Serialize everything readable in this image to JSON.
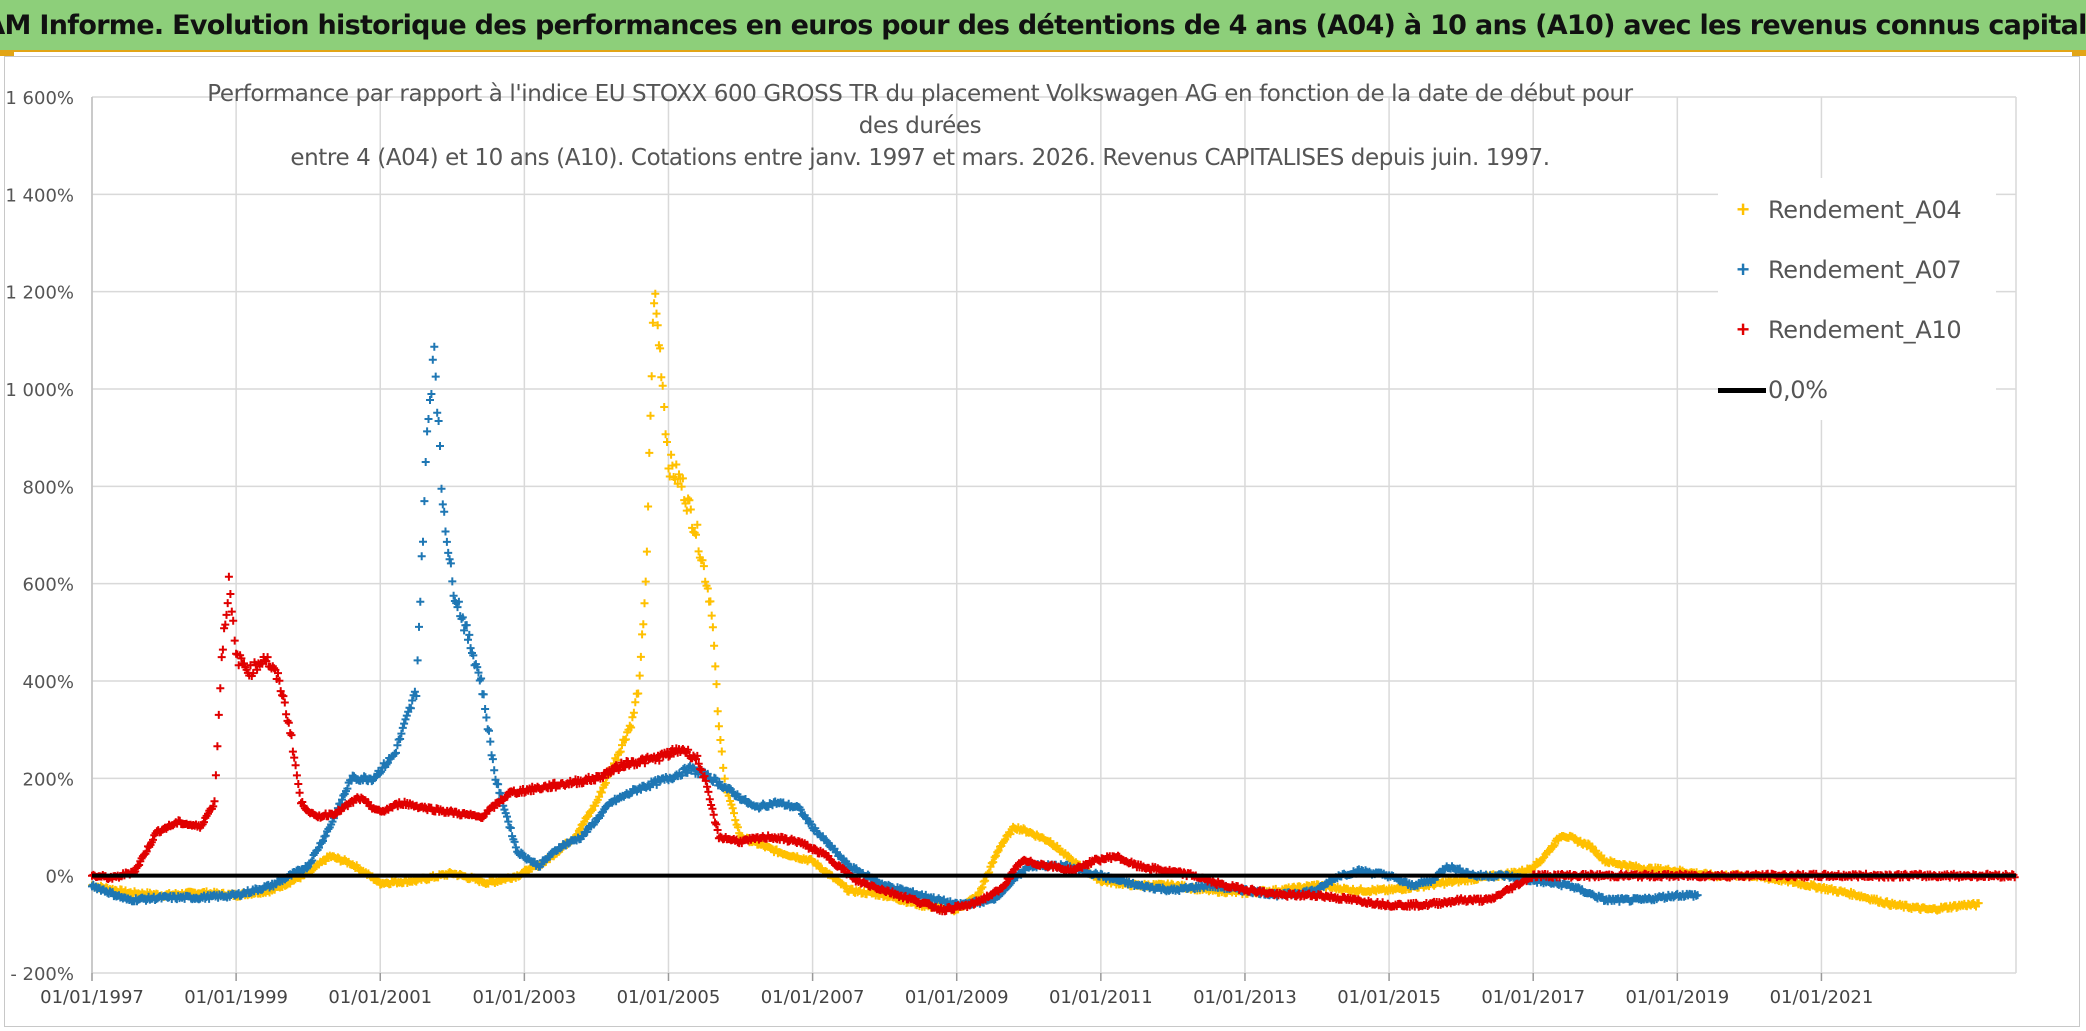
{
  "header": {
    "title": "ADAM Informe. Evolution historique des performances en euros pour des détentions de 4 ans (A04) à 10 ans (A10) avec les revenus connus capitalisés"
  },
  "chart_data": {
    "type": "scatter",
    "title_line1": "Performance par rapport à l'indice EU STOXX 600 GROSS TR  du placement Volkswagen AG en fonction de la date de début pour des durées",
    "title_line2": "entre 4 (A04) et 10 ans (A10). Cotations entre janv. 1997 et mars. 2026. Revenus CAPITALISES depuis juin. 1997.",
    "xlabel": "",
    "ylabel": "",
    "x_start_year": 1997,
    "x_end_year": 2023.7,
    "ylim": [
      -200,
      1600
    ],
    "y_ticks": [
      -200,
      0,
      200,
      400,
      600,
      800,
      1000,
      1200,
      1400,
      1600
    ],
    "y_tick_labels": [
      "- 200%",
      "0%",
      "200%",
      "400%",
      "600%",
      "800%",
      "1 000%",
      "1 200%",
      "1 400%",
      "1 600%"
    ],
    "x_tick_labels": [
      "01/01/1997",
      "01/01/1999",
      "01/01/2001",
      "01/01/2003",
      "01/01/2005",
      "01/01/2007",
      "01/01/2009",
      "01/01/2011",
      "01/01/2013",
      "01/01/2015",
      "01/01/2017",
      "01/01/2019",
      "01/01/2021"
    ],
    "legend_position": "top-right",
    "grid": true,
    "series": [
      {
        "name": "Rendement_A04",
        "color": "#ffc000",
        "marker": "+",
        "x": [
          1997.0,
          1997.5,
          1998.0,
          1998.5,
          1999.0,
          1999.5,
          2000.0,
          2000.3,
          2000.6,
          2001.0,
          2001.5,
          2002.0,
          2002.5,
          2002.9,
          2003.3,
          2003.7,
          2004.0,
          2004.3,
          2004.5,
          2004.6,
          2004.7,
          2004.75,
          2004.8,
          2004.9,
          2005.0,
          2005.2,
          2005.4,
          2005.6,
          2005.7,
          2005.8,
          2006.0,
          2006.5,
          2007.0,
          2007.5,
          2008.0,
          2008.5,
          2009.0,
          2009.3,
          2009.6,
          2009.8,
          2010.0,
          2010.3,
          2010.6,
          2011.0,
          2011.5,
          2012.0,
          2012.5,
          2013.0,
          2013.5,
          2014.0,
          2014.5,
          2015.0,
          2015.5,
          2016.0,
          2016.5,
          2016.9,
          2017.1,
          2017.4,
          2017.8,
          2018.0,
          2018.5,
          2019.0,
          2019.5,
          2020.0,
          2020.5,
          2021.0,
          2021.5,
          2022.0,
          2022.5,
          2023.0,
          2023.2
        ],
        "values": [
          -20,
          -35,
          -40,
          -35,
          -40,
          -30,
          5,
          40,
          25,
          -15,
          -10,
          5,
          -15,
          0,
          30,
          80,
          150,
          250,
          320,
          400,
          650,
          950,
          1200,
          1050,
          850,
          800,
          700,
          550,
          300,
          180,
          80,
          50,
          30,
          -30,
          -40,
          -60,
          -70,
          -40,
          60,
          100,
          90,
          70,
          30,
          -10,
          -20,
          -20,
          -30,
          -35,
          -30,
          -20,
          -30,
          -30,
          -20,
          -10,
          0,
          10,
          30,
          85,
          60,
          30,
          15,
          10,
          0,
          0,
          -10,
          -25,
          -40,
          -60,
          -70,
          -60,
          -60
        ]
      },
      {
        "name": "Rendement_A07",
        "color": "#1f77b4",
        "marker": "+",
        "x": [
          1997.0,
          1997.5,
          1998.0,
          1998.5,
          1999.0,
          1999.5,
          2000.0,
          2000.3,
          2000.6,
          2000.9,
          2001.2,
          2001.5,
          2001.65,
          2001.75,
          2001.85,
          2002.0,
          2002.2,
          2002.4,
          2002.6,
          2002.9,
          2003.2,
          2003.5,
          2003.8,
          2004.2,
          2004.6,
          2005.0,
          2005.3,
          2005.6,
          2005.9,
          2006.2,
          2006.5,
          2006.8,
          2007.0,
          2007.5,
          2008.0,
          2008.5,
          2009.0,
          2009.5,
          2010.0,
          2010.5,
          2011.0,
          2011.5,
          2012.0,
          2012.5,
          2013.0,
          2013.5,
          2014.0,
          2014.3,
          2014.6,
          2015.0,
          2015.3,
          2015.6,
          2015.8,
          2016.2,
          2016.6,
          2017.0,
          2017.5,
          2018.0,
          2018.5,
          2019.0,
          2019.3
        ],
        "values": [
          -20,
          -50,
          -45,
          -45,
          -40,
          -20,
          20,
          100,
          200,
          200,
          250,
          380,
          900,
          1100,
          800,
          600,
          500,
          400,
          200,
          50,
          20,
          60,
          80,
          150,
          180,
          200,
          220,
          200,
          170,
          140,
          150,
          140,
          100,
          20,
          -20,
          -40,
          -60,
          -50,
          20,
          20,
          0,
          -20,
          -30,
          -20,
          -30,
          -40,
          -30,
          0,
          10,
          0,
          -20,
          -10,
          20,
          0,
          0,
          -10,
          -20,
          -50,
          -50,
          -40,
          -40
        ]
      },
      {
        "name": "Rendement_A10",
        "color": "#e00000",
        "marker": "+",
        "x": [
          1997.0,
          1997.3,
          1997.6,
          1997.9,
          1998.2,
          1998.5,
          1998.7,
          1998.8,
          1998.9,
          1999.0,
          1999.2,
          1999.4,
          1999.6,
          1999.75,
          1999.9,
          2000.1,
          2000.4,
          2000.7,
          2001.0,
          2001.3,
          2001.6,
          2002.0,
          2002.4,
          2002.8,
          2003.2,
          2003.6,
          2004.0,
          2004.4,
          2004.8,
          2005.2,
          2005.4,
          2005.5,
          2005.7,
          2006.0,
          2006.4,
          2006.8,
          2007.2,
          2007.6,
          2008.0,
          2008.4,
          2008.8,
          2009.2,
          2009.6,
          2009.9,
          2010.3,
          2010.6,
          2010.9,
          2011.2,
          2011.5,
          2011.9,
          2012.3,
          2012.7,
          2013.1,
          2013.5,
          2014.0,
          2014.5,
          2015.0,
          2015.5,
          2016.0,
          2016.2,
          2016.4,
          2017.0,
          2018.0,
          2019.0,
          2020.0,
          2021.0,
          2022.0,
          2023.0,
          2023.7
        ],
        "values": [
          0,
          -5,
          10,
          90,
          110,
          100,
          150,
          450,
          600,
          450,
          420,
          450,
          400,
          300,
          150,
          120,
          130,
          160,
          130,
          150,
          140,
          130,
          120,
          170,
          180,
          190,
          200,
          230,
          240,
          260,
          240,
          200,
          80,
          70,
          80,
          70,
          40,
          -10,
          -30,
          -50,
          -70,
          -60,
          -30,
          30,
          20,
          10,
          30,
          40,
          20,
          10,
          0,
          -20,
          -30,
          -40,
          -40,
          -50,
          -60,
          -60,
          -50,
          -50,
          -50,
          0,
          0,
          0,
          0,
          0,
          0,
          0,
          0
        ]
      }
    ],
    "reference_line": {
      "name": "0,0%",
      "value": 0,
      "color": "#000000"
    }
  }
}
